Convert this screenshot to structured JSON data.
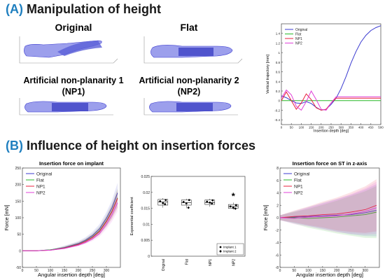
{
  "section_a": {
    "letter": "(A)",
    "title": "Manipulation of height"
  },
  "section_b": {
    "letter": "(B)",
    "title": "Influence of height on insertion forces"
  },
  "models": {
    "original": "Original",
    "flat": "Flat",
    "np1_line1": "Artificial non-planarity 1",
    "np1_line2": "(NP1)",
    "np2_line1": "Artificial non-planarity 2",
    "np2_line2": "(NP2)"
  },
  "colors": {
    "original": "#3b3bd0",
    "flat": "#28b828",
    "np1": "#e8203c",
    "np2": "#e040d8",
    "model_body": "#7b7fe6",
    "section_blue": "#1f7fbf"
  },
  "chart_data": [
    {
      "type": "line",
      "id": "trajectory",
      "xlabel": "Insertion depth [deg]",
      "ylabel": "Vertical trajectory [mm]",
      "xlim": [
        0,
        500
      ],
      "ylim": [
        -0.5,
        1.6
      ],
      "xticks": [
        0,
        50,
        100,
        150,
        200,
        250,
        300,
        350,
        400,
        450,
        500
      ],
      "yticks": [
        -0.4,
        -0.2,
        0,
        0.2,
        0.4,
        0.6,
        0.8,
        1,
        1.2,
        1.4
      ],
      "legend": [
        "Original",
        "Flat",
        "NP1",
        "NP2"
      ],
      "legend_position": "top-left",
      "series": [
        {
          "name": "Original",
          "x": [
            0,
            25,
            50,
            75,
            100,
            125,
            150,
            175,
            200,
            225,
            250,
            275,
            300,
            325,
            350,
            375,
            400,
            425,
            450,
            475,
            500
          ],
          "y": [
            0.1,
            0.06,
            0.0,
            -0.05,
            -0.06,
            -0.02,
            -0.06,
            -0.14,
            -0.2,
            -0.18,
            -0.08,
            0.05,
            0.25,
            0.5,
            0.78,
            1.02,
            1.22,
            1.36,
            1.46,
            1.52,
            1.56
          ]
        },
        {
          "name": "Flat",
          "x": [
            0,
            500
          ],
          "y": [
            0.0,
            0.0
          ]
        },
        {
          "name": "NP1",
          "x": [
            0,
            25,
            50,
            75,
            100,
            125,
            150,
            175,
            200,
            225,
            250,
            275,
            300,
            350,
            400,
            450,
            500
          ],
          "y": [
            0.0,
            0.18,
            0.0,
            -0.18,
            -0.05,
            0.14,
            0.02,
            -0.15,
            -0.2,
            -0.18,
            -0.05,
            0.05,
            0.05,
            0.05,
            0.05,
            0.05,
            0.05
          ]
        },
        {
          "name": "NP2",
          "x": [
            0,
            25,
            50,
            75,
            100,
            125,
            150,
            175,
            200,
            225,
            250,
            275,
            300,
            350,
            400,
            450,
            500
          ],
          "y": [
            0.05,
            0.22,
            0.12,
            -0.12,
            -0.2,
            -0.02,
            0.2,
            0.02,
            -0.18,
            -0.2,
            -0.05,
            0.08,
            0.08,
            0.08,
            0.08,
            0.08,
            0.08
          ]
        }
      ]
    },
    {
      "type": "line",
      "id": "force_implant",
      "title": "Insertion force on implant",
      "xlabel": "Angular insertion depth [deg]",
      "ylabel": "Force [mN]",
      "xlim": [
        0,
        350
      ],
      "ylim": [
        -50,
        250
      ],
      "xticks": [
        0,
        50,
        100,
        150,
        200,
        250,
        300
      ],
      "yticks": [
        -50,
        0,
        50,
        100,
        150,
        200,
        250
      ],
      "legend": [
        "Original",
        "Flat",
        "NP1",
        "NP2"
      ],
      "legend_position": "top-left",
      "x": [
        0,
        50,
        100,
        150,
        200,
        225,
        250,
        275,
        300,
        320,
        340
      ],
      "series": [
        {
          "name": "Original",
          "y": [
            0,
            0,
            3,
            10,
            22,
            32,
            46,
            66,
            98,
            130,
            175
          ]
        },
        {
          "name": "Flat",
          "y": [
            0,
            0,
            3,
            9,
            20,
            29,
            42,
            60,
            90,
            120,
            160
          ]
        },
        {
          "name": "NP1",
          "y": [
            0,
            0,
            2,
            8,
            19,
            28,
            40,
            58,
            88,
            118,
            158
          ]
        },
        {
          "name": "NP2",
          "y": [
            0,
            0,
            2,
            7,
            17,
            25,
            36,
            52,
            80,
            108,
            145
          ]
        }
      ]
    },
    {
      "type": "box",
      "id": "exponential_coefficient",
      "ylabel": "Exponential coefficient",
      "ylim": [
        0,
        0.025
      ],
      "yticks": [
        0,
        0.005,
        0.01,
        0.015,
        0.02,
        0.025
      ],
      "categories": [
        "Original",
        "Flat",
        "NP1",
        "NP2"
      ],
      "boxes": [
        {
          "q1": 0.016,
          "median": 0.017,
          "q3": 0.0178,
          "whisker_low": 0.0152,
          "whisker_high": 0.0182
        },
        {
          "q1": 0.016,
          "median": 0.0168,
          "q3": 0.0176,
          "whisker_low": 0.015,
          "whisker_high": 0.018
        },
        {
          "q1": 0.0162,
          "median": 0.0168,
          "q3": 0.0176,
          "whisker_low": 0.0155,
          "whisker_high": 0.018
        },
        {
          "q1": 0.015,
          "median": 0.0156,
          "q3": 0.0162,
          "whisker_low": 0.0146,
          "whisker_high": 0.0168
        }
      ],
      "points_implant1": [
        [
          0.0172,
          0.0166,
          0.0176
        ],
        [
          0.017,
          0.0165,
          0.0176
        ],
        [
          0.0171,
          0.0168,
          0.0175
        ],
        [
          0.0156,
          0.0152,
          0.016
        ]
      ],
      "points_implant2": [
        [
          0.0163
        ],
        [
          0.0152
        ],
        [
          0.0165
        ],
        [
          0.0149
        ]
      ],
      "annotation": "*",
      "legend": [
        "Implant 1",
        "Implant 2"
      ],
      "legend_position": "bottom-right"
    },
    {
      "type": "line",
      "id": "force_st_z",
      "title": "Insertion force on ST in z-axis",
      "ylabel": "Force [mN]",
      "xlabel": "Angular insertion depth [deg]",
      "xlim": [
        0,
        350
      ],
      "ylim": [
        -8,
        8
      ],
      "xticks": [
        0,
        50,
        100,
        150,
        200,
        250,
        300
      ],
      "yticks": [
        -8,
        -6,
        -4,
        -2,
        0,
        2,
        4,
        6,
        8
      ],
      "legend": [
        "Original",
        "Flat",
        "NP1",
        "NP2"
      ],
      "legend_position": "top-left",
      "x": [
        0,
        50,
        100,
        150,
        200,
        250,
        300,
        340
      ],
      "series": [
        {
          "name": "Original",
          "y": [
            0,
            0.1,
            0.2,
            0.3,
            0.4,
            0.5,
            0.8,
            1.2
          ]
        },
        {
          "name": "Flat",
          "y": [
            0,
            0.0,
            -0.1,
            0.0,
            0.1,
            0.3,
            0.5,
            0.9
          ]
        },
        {
          "name": "NP1",
          "y": [
            0,
            0.2,
            0.3,
            0.5,
            0.6,
            0.9,
            1.3,
            2.0
          ]
        },
        {
          "name": "NP2",
          "y": [
            0,
            -0.1,
            0.1,
            0.2,
            0.3,
            0.6,
            1.0,
            1.6
          ]
        }
      ]
    }
  ]
}
